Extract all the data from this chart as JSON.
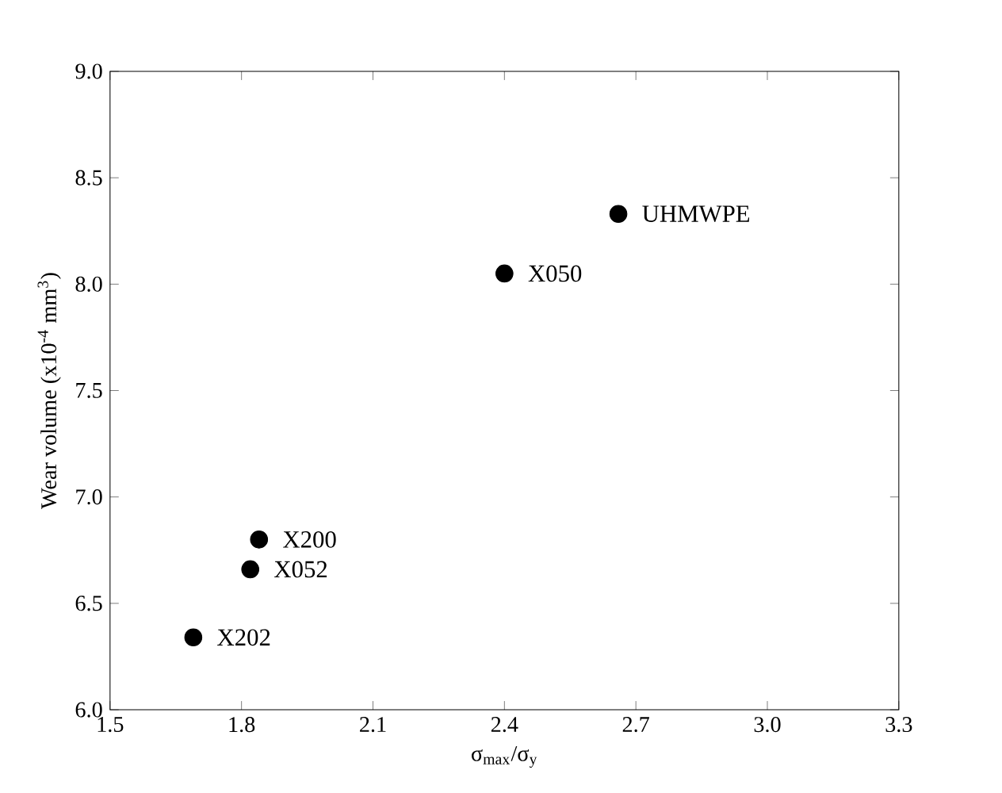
{
  "chart_data": {
    "type": "scatter",
    "xlabel": "σ$_{max}$/σ$_{y}$",
    "ylabel": "Wear volume (x10$^{-4}$ mm$^{3}$)",
    "x": [
      2.66,
      2.4,
      1.84,
      1.82,
      1.69
    ],
    "values": [
      8.33,
      8.05,
      6.8,
      6.66,
      6.34
    ],
    "color": "#000000",
    "marker": "circle",
    "grid": false,
    "xlim": [
      1.5,
      3.3
    ],
    "xticks": [
      1.5,
      1.8,
      2.1,
      2.4,
      2.7,
      {
        "value": 3,
        "label": "3.0"
      },
      3.3
    ],
    "ylim": [
      6.0,
      9.0
    ],
    "yticks": [
      {
        "value": 6,
        "label": "6.0"
      },
      6.5,
      {
        "value": 7,
        "label": "7.0"
      },
      7.5,
      {
        "value": 8,
        "label": "8.0"
      },
      8.5,
      {
        "value": 9,
        "label": "9.0"
      }
    ],
    "annotations": [
      {
        "text": "UHMWPE",
        "x": 2.66,
        "y": 8.33
      },
      {
        "text": "X050",
        "x": 2.4,
        "y": 8.05
      },
      {
        "text": "X200",
        "x": 1.84,
        "y": 6.8
      },
      {
        "text": "X052",
        "x": 1.82,
        "y": 6.66
      },
      {
        "text": "X202",
        "x": 1.69,
        "y": 6.34
      }
    ]
  }
}
